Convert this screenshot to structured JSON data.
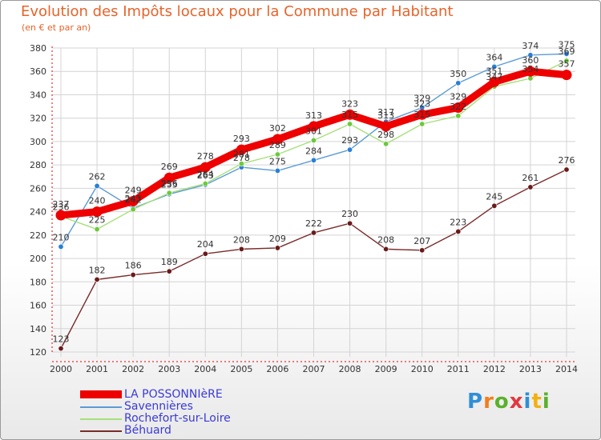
{
  "title": "Evolution des Impôts locaux pour la Commune par Habitant",
  "subtitle": "(en € et par an)",
  "logo": [
    "P",
    "r",
    "o",
    "x",
    "i",
    "t",
    "i"
  ],
  "chart_data": {
    "type": "line",
    "title": "Evolution des Impôts locaux pour la Commune par Habitant",
    "ylabel": "(en € et par an)",
    "xlabel": "",
    "ylim": [
      120,
      380
    ],
    "yticks": [
      120,
      140,
      160,
      180,
      200,
      220,
      240,
      260,
      280,
      300,
      320,
      340,
      360,
      380
    ],
    "grid": true,
    "x": [
      "2000",
      "2001",
      "2002",
      "2003",
      "2004",
      "2005",
      "2006",
      "2007",
      "2008",
      "2009",
      "2010",
      "2011",
      "2012",
      "2013",
      "2014"
    ],
    "series": [
      {
        "name": "Savennières",
        "color": "#5b9bd5",
        "dot": "#2a7fd4",
        "values": [
          210,
          262,
          243,
          255,
          263,
          278,
          275,
          284,
          293,
          317,
          329,
          350,
          364,
          374,
          375
        ]
      },
      {
        "name": "Rochefort-sur-Loire",
        "color": "#a6e07a",
        "dot": "#6cc93a",
        "values": [
          236,
          225,
          242,
          256,
          264,
          281,
          289,
          301,
          315,
          298,
          315,
          322,
          347,
          354,
          369
        ]
      },
      {
        "name": "Béhuard",
        "color": "#7a2b2b",
        "dot": "#6a1a1a",
        "values": [
          123,
          182,
          186,
          189,
          204,
          208,
          209,
          222,
          230,
          208,
          207,
          223,
          245,
          261,
          276
        ]
      },
      {
        "name": "LA POSSONNIèRE",
        "color": "#ee0000",
        "dot": "#ee0000",
        "values": [
          237,
          240,
          249,
          269,
          278,
          293,
          302,
          313,
          323,
          313,
          323,
          329,
          351,
          360,
          357
        ]
      }
    ],
    "legend": [
      "LA POSSONNIèRE",
      "Savennières",
      "Rochefort-sur-Loire",
      "Béhuard"
    ]
  }
}
